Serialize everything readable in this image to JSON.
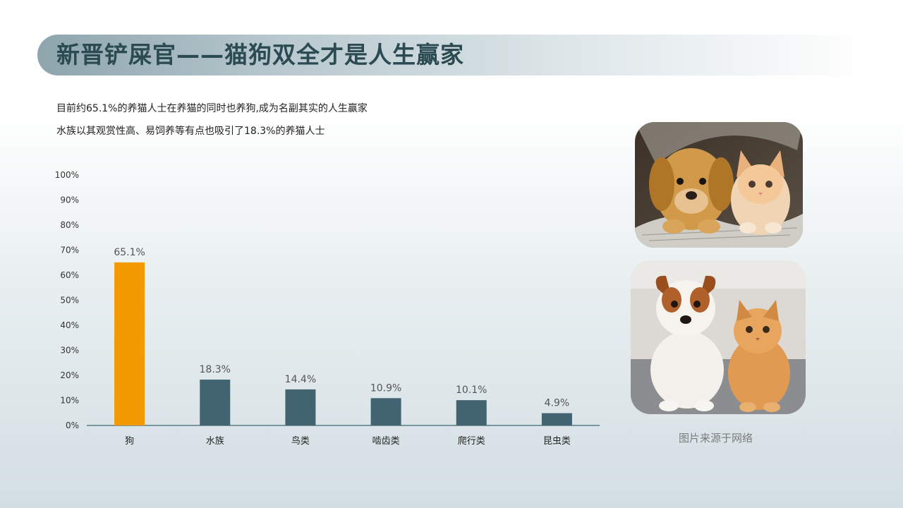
{
  "title": "新晋铲屎官——猫狗双全才是人生赢家",
  "description": [
    "目前约65.1%的养猫人士在养猫的同时也养狗,成为名副其实的人生赢家",
    "水族以其观赏性高、易饲养等有点也吸引了18.3%的养猫人士"
  ],
  "images": [
    {
      "icon": "puppy-and-kitten-on-newspaper-photo"
    },
    {
      "icon": "puppy-and-orange-kitten-photo"
    }
  ],
  "image_source": "图片来源于网络",
  "chart_data": {
    "type": "bar",
    "categories": [
      "狗",
      "水族",
      "鸟类",
      "啮齿类",
      "爬行类",
      "昆虫类"
    ],
    "values": [
      65.1,
      18.3,
      14.4,
      10.9,
      10.1,
      4.9
    ],
    "value_labels": [
      "65.1%",
      "18.3%",
      "14.4%",
      "10.9%",
      "10.1%",
      "4.9%"
    ],
    "ylim": [
      0,
      100
    ],
    "yticks": [
      0,
      10,
      20,
      30,
      40,
      50,
      60,
      70,
      80,
      90,
      100
    ],
    "ytick_labels": [
      "0%",
      "10%",
      "20%",
      "30%",
      "40%",
      "50%",
      "60%",
      "70%",
      "80%",
      "90%",
      "100%"
    ],
    "colors": [
      "#f29a00",
      "#426470",
      "#426470",
      "#426470",
      "#426470",
      "#426470"
    ],
    "axis_color": "#5b7b86",
    "grid": false,
    "legend": "none"
  }
}
